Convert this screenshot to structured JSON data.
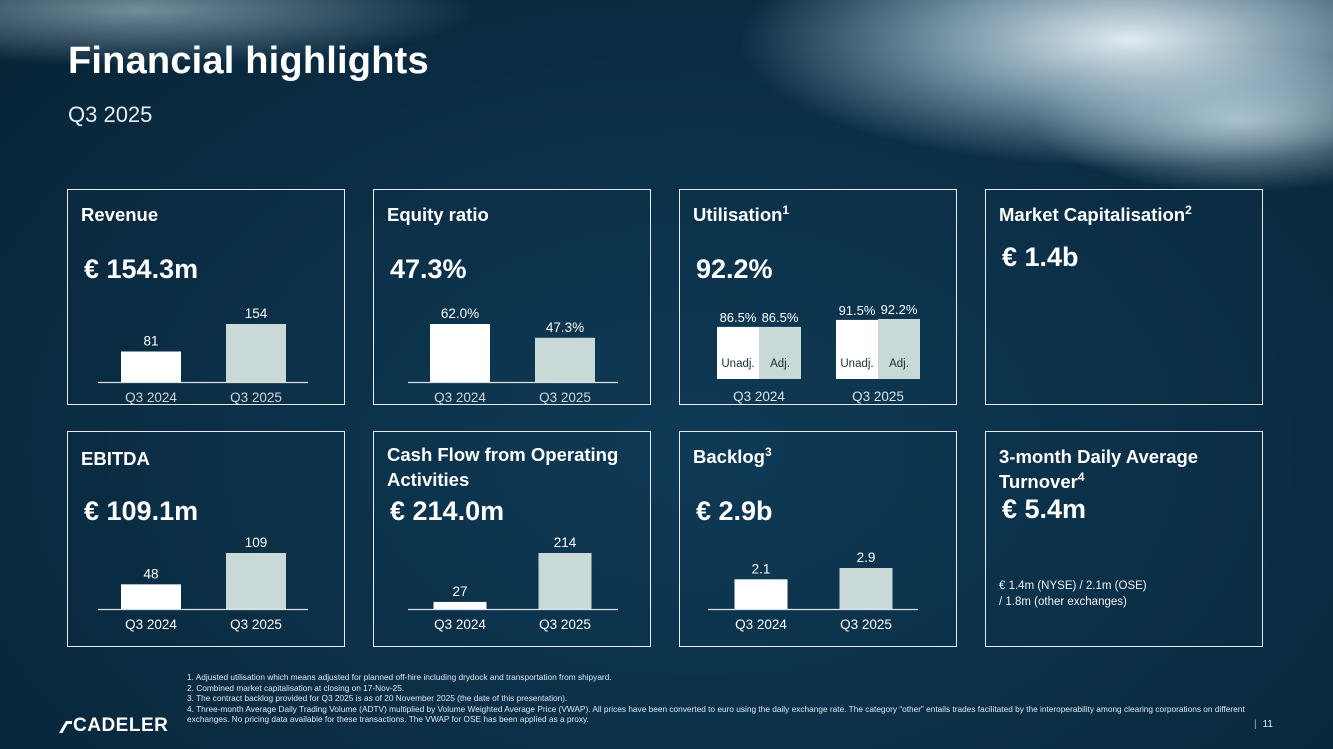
{
  "header": {
    "title": "Financial highlights",
    "subtitle": "Q3 2025"
  },
  "colors": {
    "bar_prev": "#ffffff",
    "bar_curr": "#c9d9d8",
    "axis": "#ffffff"
  },
  "cards": {
    "revenue": {
      "title": "Revenue",
      "kpi": "€ 154.3m"
    },
    "equity": {
      "title": "Equity ratio",
      "kpi": "47.3%"
    },
    "utilisation": {
      "title": "Utilisation",
      "sup": "1",
      "kpi": "92.2%"
    },
    "marketcap": {
      "title": "Market Capitalisation",
      "sup": "2",
      "kpi": "€ 1.4b"
    },
    "ebitda": {
      "title": "EBITDA",
      "kpi": "€ 109.1m"
    },
    "cashflow": {
      "title": "Cash Flow from Operating Activities",
      "kpi": "€ 214.0m"
    },
    "backlog": {
      "title": "Backlog",
      "sup": "3",
      "kpi": "€ 2.9b"
    },
    "turnover": {
      "title": "3-month Daily Average Turnover",
      "sup": "4",
      "kpi": "€ 5.4m",
      "note1": "€ 1.4m (NYSE) / 2.1m (OSE)",
      "note2": "/ 1.8m (other exchanges)"
    }
  },
  "chart_data": [
    {
      "id": "revenue",
      "type": "bar",
      "title": "Revenue",
      "categories": [
        "Q3 2024",
        "Q3 2025"
      ],
      "values": [
        81,
        154
      ],
      "labels": [
        "81",
        "154"
      ],
      "ylim": [
        0,
        154
      ]
    },
    {
      "id": "equity",
      "type": "bar",
      "title": "Equity ratio",
      "categories": [
        "Q3 2024",
        "Q3 2025"
      ],
      "values": [
        62.0,
        47.3
      ],
      "labels": [
        "62.0%",
        "47.3%"
      ],
      "ylim": [
        0,
        62.0
      ]
    },
    {
      "id": "utilisation",
      "type": "bar",
      "title": "Utilisation",
      "categories": [
        "Q3 2024",
        "Q3 2025"
      ],
      "series_labels": [
        "Unadj.",
        "Adj."
      ],
      "series": [
        {
          "name": "Unadj.",
          "values": [
            86.5,
            91.5
          ],
          "labels": [
            "86.5%",
            "91.5%"
          ]
        },
        {
          "name": "Adj.",
          "values": [
            86.5,
            92.2
          ],
          "labels": [
            "86.5%",
            "92.2%"
          ]
        }
      ],
      "ylim": [
        60,
        92.2
      ]
    },
    {
      "id": "ebitda",
      "type": "bar",
      "title": "EBITDA",
      "categories": [
        "Q3 2024",
        "Q3 2025"
      ],
      "values": [
        48,
        109
      ],
      "labels": [
        "48",
        "109"
      ],
      "ylim": [
        0,
        109
      ]
    },
    {
      "id": "cashflow",
      "type": "bar",
      "title": "Cash Flow from Operating Activities",
      "categories": [
        "Q3 2024",
        "Q3 2025"
      ],
      "values": [
        27,
        214
      ],
      "labels": [
        "27",
        "214"
      ],
      "ylim": [
        0,
        214
      ]
    },
    {
      "id": "backlog",
      "type": "bar",
      "title": "Backlog",
      "categories": [
        "Q3 2024",
        "Q3 2025"
      ],
      "values": [
        2.1,
        2.9
      ],
      "labels": [
        "2.1",
        "2.9"
      ],
      "ylim": [
        0,
        2.9
      ]
    }
  ],
  "footnotes": [
    "1. Adjusted utilisation which means adjusted for planned off-hire including drydock and transportation from shipyard.",
    "2. Combined market capitalisation at closing on 17-Nov-25.",
    "3. The contract backlog provided for Q3 2025 is as of 20 November 2025 (the date of this presentation).",
    "4. Three-month Average Daily Trading Volume (ADTV) multiplied by Volume Weighted Average Price (VWAP). All prices have been converted to euro using the daily exchange rate. The category “other” entails trades facilitated by the interoperability among clearing corporations on different exchanges. No pricing data available for these transactions. The VWAP for OSE has been applied as a proxy."
  ],
  "footer": {
    "logo": "CADELER",
    "page": "11"
  }
}
